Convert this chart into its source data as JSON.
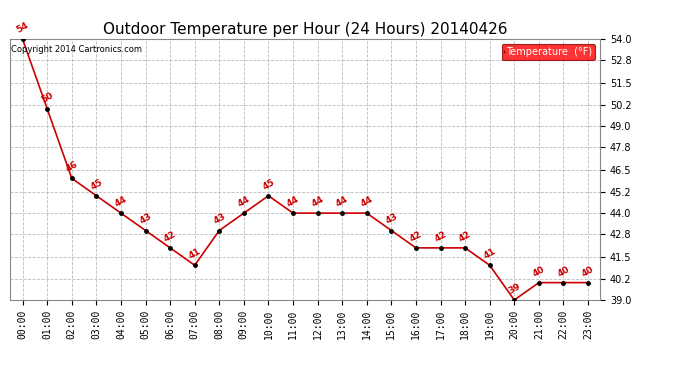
{
  "title": "Outdoor Temperature per Hour (24 Hours) 20140426",
  "copyright": "Copyright 2014 Cartronics.com",
  "legend_label": "Temperature  (°F)",
  "hours": [
    "00:00",
    "01:00",
    "02:00",
    "03:00",
    "04:00",
    "05:00",
    "06:00",
    "07:00",
    "08:00",
    "09:00",
    "10:00",
    "11:00",
    "12:00",
    "13:00",
    "14:00",
    "15:00",
    "16:00",
    "17:00",
    "18:00",
    "19:00",
    "20:00",
    "21:00",
    "22:00",
    "23:00"
  ],
  "temperatures": [
    54,
    50,
    46,
    45,
    44,
    43,
    42,
    41,
    43,
    44,
    45,
    44,
    44,
    44,
    44,
    43,
    42,
    42,
    42,
    41,
    39,
    40,
    40,
    40
  ],
  "ylim_min": 39.0,
  "ylim_max": 54.0,
  "yticks": [
    39.0,
    40.2,
    41.5,
    42.8,
    44.0,
    45.2,
    46.5,
    47.8,
    49.0,
    50.2,
    51.5,
    52.8,
    54.0
  ],
  "line_color": "#cc0000",
  "marker_color": "#000000",
  "label_color": "#cc0000",
  "bg_color": "#ffffff",
  "grid_color": "#bbbbbb",
  "title_fontsize": 11,
  "label_fontsize": 6.5,
  "axis_fontsize": 7,
  "copyright_fontsize": 6,
  "legend_fontsize": 7
}
